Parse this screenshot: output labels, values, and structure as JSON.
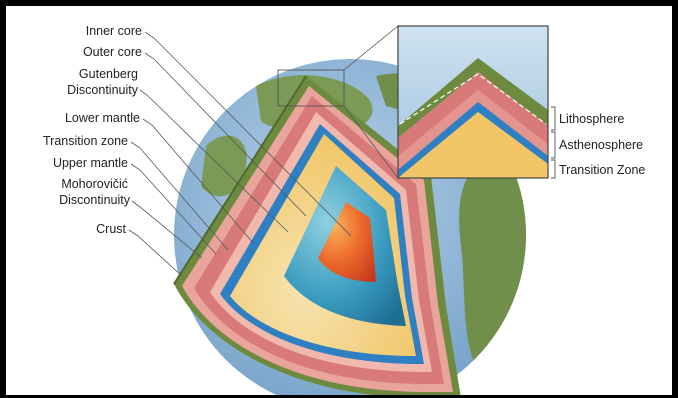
{
  "diagram": {
    "left_labels": {
      "inner_core": "Inner core",
      "outer_core": "Outer core",
      "gutenberg_1": "Gutenberg",
      "gutenberg_2": "Discontinuity",
      "lower_mantle": "Lower mantle",
      "transition_zone": "Transition zone",
      "upper_mantle": "Upper mantle",
      "moho_1": "Mohorovičić",
      "moho_2": "Discontinuity",
      "crust": "Crust"
    },
    "inset_labels": {
      "lithosphere": "Lithosphere",
      "asthenosphere": "Asthenosphere",
      "transition_zone": "Transition Zone"
    }
  },
  "colors": {
    "ocean": "#8fb6d8",
    "land": "#6f8f4a",
    "crust": "#6d8a3f",
    "upper_mantle": "#d97a7a",
    "moho_band": "#e9a59c",
    "transition_zone": "#2f7fc3",
    "lower_mantle": "#f2c667",
    "outer_core": "#3a9cc0",
    "inner_core": "#e8602a"
  }
}
